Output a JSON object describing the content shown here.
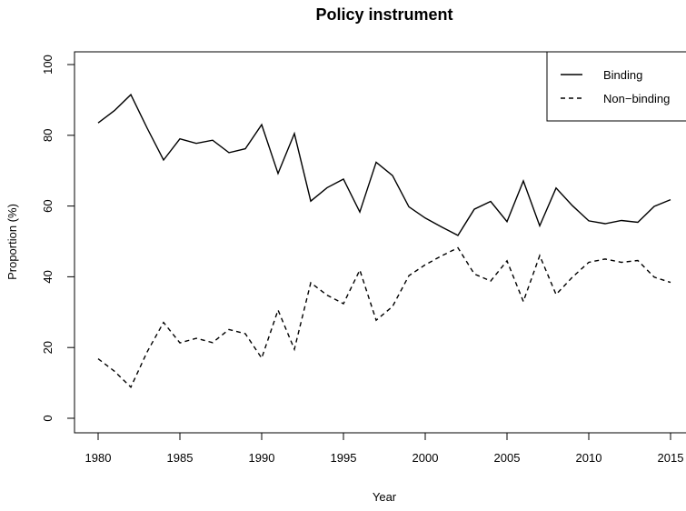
{
  "chart_data": {
    "type": "line",
    "title": "Policy instrument",
    "xlabel": "Year",
    "ylabel": "Proportion (%)",
    "xlim": [
      1980,
      2015
    ],
    "ylim": [
      0,
      100
    ],
    "x_ticks": [
      "1980",
      "1985",
      "1990",
      "1995",
      "2000",
      "2005",
      "2010",
      "2015"
    ],
    "y_ticks": [
      "0",
      "20",
      "40",
      "60",
      "80",
      "100"
    ],
    "grid": false,
    "legend_position": "top-right",
    "x": [
      1980,
      1981,
      1982,
      1983,
      1984,
      1985,
      1986,
      1987,
      1988,
      1989,
      1990,
      1991,
      1992,
      1993,
      1994,
      1995,
      1996,
      1997,
      1998,
      1999,
      2000,
      2001,
      2002,
      2003,
      2004,
      2005,
      2006,
      2007,
      2008,
      2009,
      2010,
      2011,
      2012,
      2013,
      2014,
      2015
    ],
    "series": [
      {
        "name": "Binding",
        "line_style": "solid",
        "values": [
          83.5,
          87,
          91.5,
          82,
          73,
          79,
          77.7,
          78.6,
          75.1,
          76.2,
          83,
          69.2,
          80.5,
          61.4,
          65.2,
          67.6,
          58.3,
          72.4,
          68.6,
          59.8,
          56.6,
          54.1,
          51.7,
          59.1,
          61.3,
          55.6,
          67.1,
          54.4,
          65.1,
          60.1,
          55.8,
          55,
          55.9,
          55.4,
          59.9,
          61.8
        ]
      },
      {
        "name": "Non−binding",
        "line_style": "dashed",
        "values": [
          16.8,
          13.3,
          8.8,
          18.8,
          27.1,
          21.3,
          22.6,
          21.4,
          25.1,
          23.9,
          17,
          30.6,
          19.5,
          38.3,
          34.8,
          32.4,
          41.9,
          27.7,
          31.6,
          40.3,
          43.4,
          45.9,
          48.2,
          40.8,
          38.8,
          44.5,
          33,
          46,
          35,
          39.9,
          44.1,
          45,
          44.1,
          44.6,
          39.9,
          38.4
        ]
      }
    ]
  }
}
